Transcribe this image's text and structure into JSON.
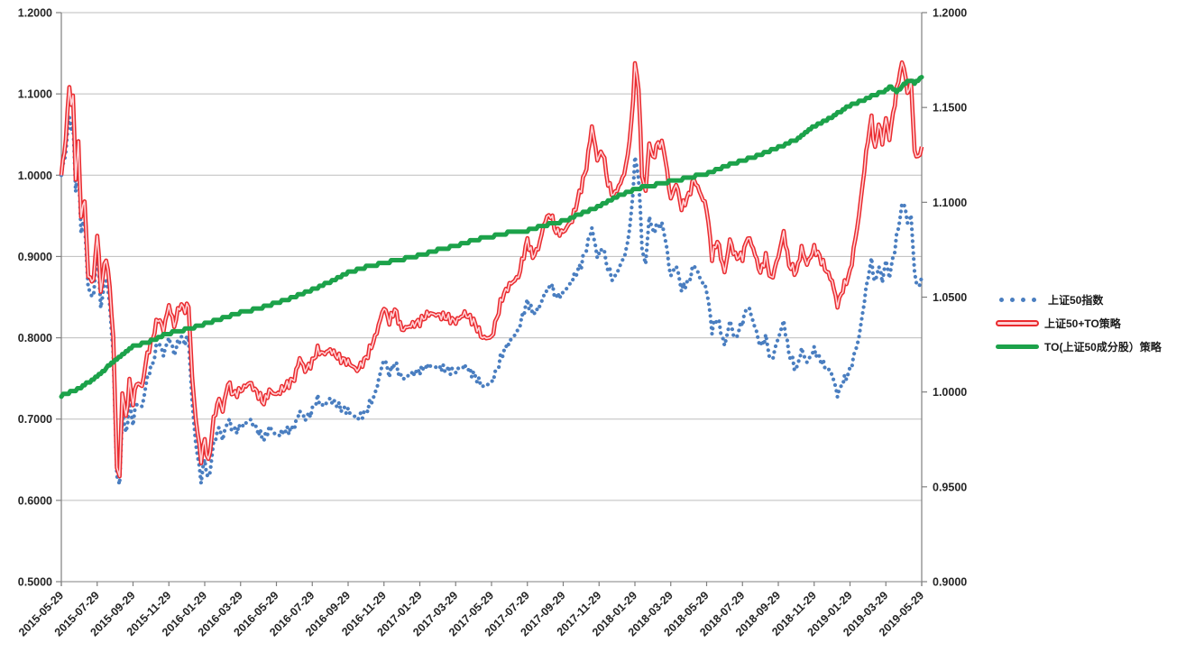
{
  "chart_data": {
    "type": "line",
    "title": "",
    "grid": "horizontal",
    "legend_position": "right",
    "x_axis": {
      "labels": [
        "2015-05-29",
        "2015-07-29",
        "2015-09-29",
        "2015-11-29",
        "2016-01-29",
        "2016-03-29",
        "2016-05-29",
        "2016-07-29",
        "2016-09-29",
        "2016-11-29",
        "2017-01-29",
        "2017-03-29",
        "2017-05-29",
        "2017-07-29",
        "2017-09-29",
        "2017-11-29",
        "2018-01-29",
        "2018-03-29",
        "2018-05-29",
        "2018-07-29",
        "2018-09-29",
        "2018-11-29",
        "2019-01-29",
        "2019-03-29",
        "2019-05-29"
      ],
      "months_per_label": 2
    },
    "left_axis": {
      "min": 0.5,
      "max": 1.2,
      "step": 0.1,
      "tick_values": [
        1.2,
        1.1,
        1.0,
        0.9,
        0.8,
        0.7,
        0.6,
        0.5
      ],
      "tick_labels": [
        "1.2000",
        "1.1000",
        "1.0000",
        "0.9000",
        "0.8000",
        "0.7000",
        "0.6000",
        "0.5000"
      ]
    },
    "right_axis": {
      "min": 0.9,
      "max": 1.2,
      "step": 0.05,
      "tick_values": [
        1.2,
        1.15,
        1.1,
        1.05,
        1.0,
        0.95,
        0.9
      ],
      "tick_labels": [
        "1.2000",
        "1.1500",
        "1.1000",
        "1.0500",
        "1.0000",
        "0.9500",
        "0.9000"
      ]
    },
    "x_months_ab": [
      0,
      0.25,
      0.45,
      0.55,
      0.65,
      0.8,
      0.95,
      1.1,
      1.3,
      1.5,
      1.8,
      2.0,
      2.2,
      2.5,
      2.7,
      2.9,
      3.1,
      3.25,
      3.4,
      3.6,
      3.8,
      4.0,
      4.2,
      4.5,
      4.8,
      5.1,
      5.4,
      5.7,
      6.0,
      6.3,
      6.6,
      6.9,
      7.1,
      7.3,
      7.5,
      7.8,
      8.0,
      8.2,
      8.5,
      8.8,
      9.0,
      9.3,
      9.6,
      10.0,
      10.5,
      11.0,
      11.3,
      11.6,
      12.0,
      12.5,
      13.0,
      13.3,
      13.6,
      14.0,
      14.3,
      14.6,
      15.0,
      15.5,
      16.0,
      16.5,
      17.0,
      17.5,
      18.0,
      18.3,
      18.6,
      19.0,
      19.5,
      20.0,
      20.5,
      21.0,
      21.5,
      22.0,
      22.5,
      23.0,
      23.5,
      24.0,
      24.3,
      24.6,
      25.0,
      25.5,
      26.0,
      26.3,
      26.6,
      27.0,
      27.3,
      27.6,
      28.0,
      28.5,
      29.0,
      29.3,
      29.6,
      29.9,
      30.2,
      30.5,
      30.8,
      31.2,
      31.5,
      31.8,
      32.0,
      32.2,
      32.4,
      32.6,
      32.8,
      33.0,
      33.3,
      33.6,
      34.0,
      34.3,
      34.6,
      35.0,
      35.3,
      35.6,
      36.0,
      36.3,
      36.6,
      37.0,
      37.3,
      37.6,
      38.0,
      38.3,
      38.6,
      39.0,
      39.3,
      39.6,
      40.0,
      40.3,
      40.6,
      41.0,
      41.3,
      41.6,
      42.0,
      42.3,
      42.6,
      43.0,
      43.3,
      43.6,
      44.0,
      44.5,
      45.0,
      45.2,
      45.4,
      45.6,
      45.8,
      46.0,
      46.2,
      46.5,
      46.8,
      47.0,
      47.2,
      47.4,
      47.6,
      47.8,
      48.0
    ],
    "series": [
      {
        "name": "上证50指数",
        "axis": "left",
        "style": "dotted",
        "color": "#4a7ec0",
        "x_ref": "x_months_ab",
        "values": [
          1.0,
          1.03,
          1.075,
          1.055,
          1.065,
          0.985,
          1.02,
          0.93,
          0.945,
          0.86,
          0.85,
          0.91,
          0.84,
          0.875,
          0.84,
          0.78,
          0.63,
          0.615,
          0.71,
          0.68,
          0.72,
          0.695,
          0.72,
          0.715,
          0.75,
          0.77,
          0.795,
          0.78,
          0.8,
          0.78,
          0.8,
          0.795,
          0.8,
          0.72,
          0.67,
          0.625,
          0.65,
          0.623,
          0.67,
          0.69,
          0.675,
          0.7,
          0.685,
          0.69,
          0.7,
          0.685,
          0.675,
          0.69,
          0.68,
          0.685,
          0.69,
          0.71,
          0.7,
          0.71,
          0.725,
          0.715,
          0.725,
          0.715,
          0.71,
          0.7,
          0.71,
          0.73,
          0.775,
          0.755,
          0.77,
          0.75,
          0.755,
          0.76,
          0.765,
          0.765,
          0.76,
          0.76,
          0.765,
          0.755,
          0.74,
          0.745,
          0.76,
          0.78,
          0.795,
          0.81,
          0.845,
          0.83,
          0.835,
          0.855,
          0.865,
          0.85,
          0.855,
          0.87,
          0.89,
          0.91,
          0.935,
          0.9,
          0.91,
          0.885,
          0.87,
          0.89,
          0.905,
          0.95,
          1.02,
          1.0,
          0.91,
          0.89,
          0.95,
          0.93,
          0.94,
          0.935,
          0.875,
          0.89,
          0.86,
          0.87,
          0.89,
          0.875,
          0.86,
          0.81,
          0.825,
          0.79,
          0.82,
          0.8,
          0.82,
          0.84,
          0.82,
          0.79,
          0.8,
          0.77,
          0.8,
          0.82,
          0.78,
          0.76,
          0.785,
          0.77,
          0.785,
          0.775,
          0.765,
          0.755,
          0.73,
          0.745,
          0.76,
          0.8,
          0.875,
          0.895,
          0.865,
          0.89,
          0.87,
          0.895,
          0.875,
          0.91,
          0.95,
          0.97,
          0.94,
          0.95,
          0.88,
          0.86,
          0.875
        ]
      },
      {
        "name": "上证50+TO策略",
        "axis": "left",
        "style": "double-line",
        "color": "#ea2a2e",
        "inner_color": "#ffd2d6",
        "x_ref": "x_months_ab",
        "values": [
          1.0,
          1.045,
          1.112,
          1.085,
          1.098,
          1.0,
          1.04,
          0.95,
          0.97,
          0.875,
          0.87,
          0.93,
          0.86,
          0.9,
          0.862,
          0.8,
          0.64,
          0.625,
          0.735,
          0.7,
          0.745,
          0.72,
          0.745,
          0.74,
          0.78,
          0.8,
          0.825,
          0.81,
          0.84,
          0.815,
          0.84,
          0.835,
          0.84,
          0.75,
          0.7,
          0.65,
          0.675,
          0.645,
          0.7,
          0.725,
          0.71,
          0.745,
          0.73,
          0.735,
          0.745,
          0.73,
          0.72,
          0.735,
          0.73,
          0.74,
          0.75,
          0.775,
          0.76,
          0.77,
          0.785,
          0.78,
          0.785,
          0.775,
          0.77,
          0.76,
          0.775,
          0.8,
          0.838,
          0.82,
          0.835,
          0.81,
          0.815,
          0.82,
          0.83,
          0.828,
          0.825,
          0.82,
          0.83,
          0.82,
          0.8,
          0.8,
          0.825,
          0.85,
          0.865,
          0.875,
          0.92,
          0.9,
          0.91,
          0.945,
          0.952,
          0.93,
          0.93,
          0.945,
          0.985,
          1.01,
          1.06,
          1.02,
          1.03,
          0.99,
          0.975,
          0.99,
          1.01,
          1.06,
          1.135,
          1.11,
          1.0,
          0.98,
          1.04,
          1.02,
          1.04,
          1.035,
          0.97,
          0.99,
          0.96,
          0.975,
          0.995,
          0.98,
          0.96,
          0.9,
          0.92,
          0.88,
          0.92,
          0.9,
          0.9,
          0.925,
          0.91,
          0.88,
          0.9,
          0.87,
          0.9,
          0.93,
          0.89,
          0.88,
          0.91,
          0.89,
          0.91,
          0.9,
          0.886,
          0.87,
          0.84,
          0.86,
          0.88,
          0.95,
          1.045,
          1.07,
          1.03,
          1.065,
          1.04,
          1.07,
          1.045,
          1.09,
          1.13,
          1.137,
          1.1,
          1.115,
          1.03,
          1.02,
          1.035
        ]
      },
      {
        "name": "TO(上证50成分股）策略",
        "axis": "right",
        "style": "solid-thick",
        "color": "#1ca24a",
        "x": [
          0,
          1,
          2,
          3,
          4,
          5,
          6,
          7,
          8,
          9,
          10,
          11,
          12,
          13,
          14,
          15,
          16,
          17,
          18,
          19,
          20,
          21,
          22,
          23,
          24,
          25,
          26,
          27,
          28,
          29,
          30,
          31,
          32,
          33,
          34,
          35,
          36,
          37,
          38,
          39,
          40,
          41,
          42,
          43,
          44,
          45,
          45.5,
          46,
          46.3,
          46.6,
          47,
          47.3,
          47.6,
          48
        ],
        "values": [
          0.998,
          1.002,
          1.008,
          1.017,
          1.024,
          1.027,
          1.031,
          1.033,
          1.036,
          1.039,
          1.042,
          1.044,
          1.047,
          1.05,
          1.054,
          1.058,
          1.063,
          1.066,
          1.068,
          1.07,
          1.072,
          1.075,
          1.077,
          1.08,
          1.082,
          1.084,
          1.085,
          1.088,
          1.09,
          1.094,
          1.098,
          1.103,
          1.107,
          1.109,
          1.111,
          1.113,
          1.115,
          1.119,
          1.122,
          1.125,
          1.129,
          1.133,
          1.14,
          1.145,
          1.151,
          1.155,
          1.157,
          1.159,
          1.161,
          1.158,
          1.162,
          1.164,
          1.163,
          1.166
        ]
      }
    ],
    "colors": {
      "grid": "#bdbdbd",
      "axis_line": "#808080",
      "tick": "#808080",
      "label_text": "#262626"
    }
  },
  "legend": {
    "items": [
      {
        "label": "上证50指数"
      },
      {
        "label": "上证50+TO策略"
      },
      {
        "label": "TO(上证50成分股）策略"
      }
    ]
  }
}
